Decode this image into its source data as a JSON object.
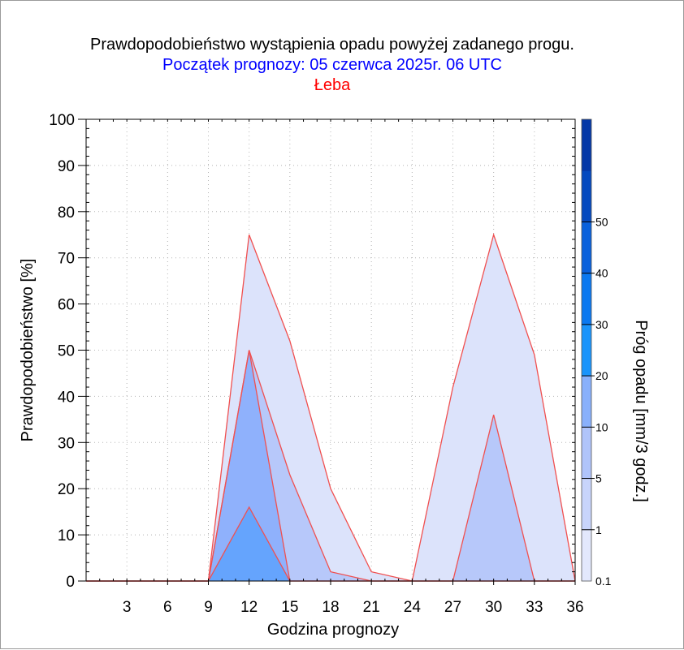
{
  "chart_data": {
    "type": "area",
    "title": "Prawdopodobieństwo wystąpienia opadu powyżej zadanego progu.",
    "subtitle": "Początek prognozy: 05 czerwca 2025r. 06 UTC",
    "location": "Łeba",
    "xlabel": "Godzina prognozy",
    "ylabel": "Prawdopodobieństwo [%]",
    "colorbar_label": "Próg opadu [mm/3 godz.]",
    "xlim": [
      0,
      36
    ],
    "ylim": [
      0,
      100
    ],
    "x_ticks": [
      3,
      6,
      9,
      12,
      15,
      18,
      21,
      24,
      27,
      30,
      33,
      36
    ],
    "y_ticks": [
      0,
      10,
      20,
      30,
      40,
      50,
      60,
      70,
      80,
      90,
      100
    ],
    "x": [
      0,
      3,
      6,
      9,
      12,
      15,
      18,
      21,
      24,
      27,
      30,
      33,
      36
    ],
    "series": [
      {
        "threshold": "0.1",
        "color": "#dce3fb",
        "values": [
          0,
          0,
          0,
          0,
          75,
          52,
          20,
          2,
          0,
          42,
          75,
          49,
          0
        ]
      },
      {
        "threshold": "1",
        "color": "#b7c8fa",
        "values": [
          0,
          0,
          0,
          0,
          50,
          23,
          2,
          0,
          0,
          0,
          36,
          0,
          0
        ]
      },
      {
        "threshold": "5",
        "color": "#8fb1fc",
        "values": [
          0,
          0,
          0,
          0,
          50,
          0,
          0,
          0,
          0,
          0,
          0,
          0,
          0
        ]
      },
      {
        "threshold": "10",
        "color": "#65a4fd",
        "values": [
          0,
          0,
          0,
          0,
          16,
          0,
          0,
          0,
          0,
          0,
          0,
          0,
          0
        ]
      }
    ],
    "colorbar": {
      "tick_labels": [
        "0.1",
        "1",
        "5",
        "10",
        "20",
        "30",
        "40",
        "50"
      ],
      "bands": [
        "#e3e8fc",
        "#c8d4fb",
        "#b0c4fa",
        "#89b0fb",
        "#1a94fb",
        "#0a78f0",
        "#0860dc",
        "#0449bf",
        "#0438a7"
      ]
    },
    "colors": {
      "title": "#000000",
      "subtitle": "#0000ff",
      "location": "#ff0000",
      "series_outline": "#f05050",
      "grid": "#b4b4b4"
    },
    "grid": true
  }
}
